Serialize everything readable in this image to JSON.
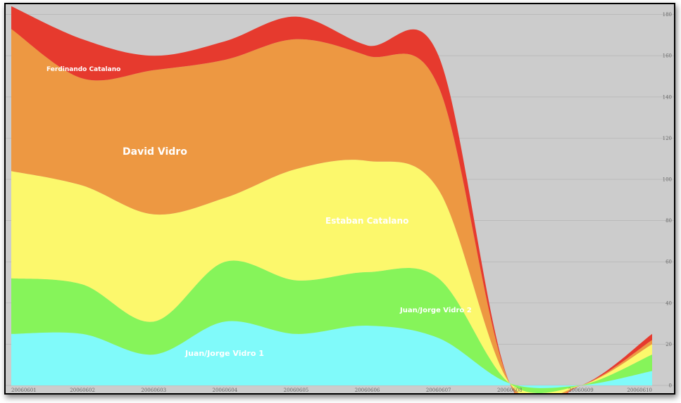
{
  "chart_data": {
    "type": "area",
    "stacked": true,
    "x": [
      "20060601",
      "20060602",
      "20060603",
      "20060604",
      "20060605",
      "20060606",
      "20060607",
      "20060608",
      "20060609",
      "20060610"
    ],
    "ylim": [
      0,
      185
    ],
    "yticks": [
      0,
      20,
      40,
      60,
      80,
      100,
      120,
      140,
      160,
      180
    ],
    "yticks_labels": [
      "0",
      "20",
      "40",
      "60",
      "80",
      "100",
      "120",
      "140",
      "160",
      "180"
    ],
    "grid": "horizontal",
    "series": [
      {
        "name": "Juan/Jorge Vidro 1",
        "color": "#80fafa",
        "values": [
          25,
          25,
          15,
          31,
          25,
          29,
          23,
          1,
          0,
          7
        ]
      },
      {
        "name": "Juan/Jorge Vidro 2",
        "color": "#86f45a",
        "values": [
          27,
          24,
          16,
          29,
          26,
          26,
          29,
          0,
          0,
          8
        ]
      },
      {
        "name": "Estaban Catalano",
        "color": "#fcf86c",
        "values": [
          52,
          48,
          52,
          31,
          54,
          54,
          43,
          0,
          0,
          5
        ]
      },
      {
        "name": "David Vidro",
        "color": "#ed9842",
        "values": [
          69,
          52,
          70,
          67,
          63,
          51,
          50,
          0,
          0,
          2
        ]
      },
      {
        "name": "Ferdinando Catalano",
        "color": "#e63a2e",
        "values": [
          11,
          19,
          7,
          9,
          11,
          5,
          15,
          0,
          0,
          3
        ]
      }
    ]
  },
  "stream_labels": {
    "ferdinando": "Ferdinando Catalano",
    "david": "David Vidro",
    "estaban": "Estaban Catalano",
    "juan2": "Juan/Jorge Vidro 2",
    "juan1": "Juan/Jorge Vidro 1"
  }
}
